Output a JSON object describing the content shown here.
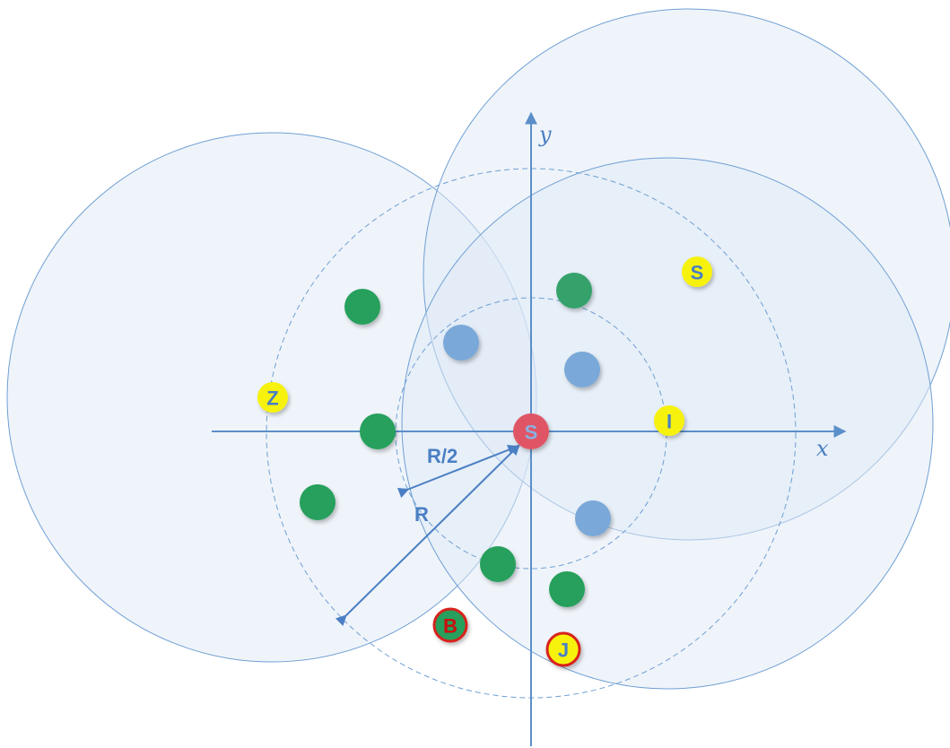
{
  "axes": {
    "x_label": "x",
    "y_label": "y"
  },
  "labels": {
    "radius_half": "R/2",
    "radius_full": "R"
  },
  "colors": {
    "coverage_fill": "#dfe9f5",
    "coverage_stroke": "#6f9fd4",
    "dashed_ring": "#6f9fd4",
    "axis": "#5b8fc9",
    "green_node": "#27a05c",
    "blue_node": "#7aa8d8",
    "center_node": "#e05565",
    "yellow_node": "#f7f20a",
    "red_ring": "#d8201e",
    "blue_text": "#4a7fc4",
    "red_text": "#cc1010"
  },
  "nodes": {
    "center": {
      "label": "S"
    },
    "yellow": [
      {
        "id": "s",
        "label": "S",
        "style": "plain"
      },
      {
        "id": "z",
        "label": "Z",
        "style": "plain"
      },
      {
        "id": "i",
        "label": "I",
        "style": "plain"
      },
      {
        "id": "j",
        "label": "J",
        "style": "red-ring"
      }
    ],
    "special": {
      "id": "b",
      "label": "B"
    }
  }
}
